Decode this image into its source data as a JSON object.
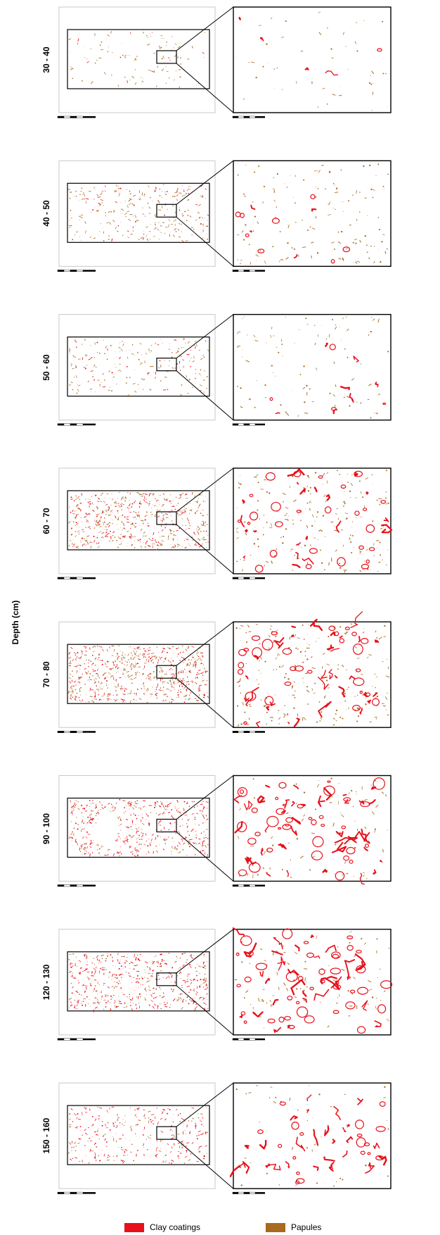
{
  "y_axis_label": "Depth (cm)",
  "colors": {
    "clay": "#e8101a",
    "papules": "#a86a1e",
    "frame": "#c8c8c8",
    "box": "#000000"
  },
  "legend": [
    {
      "label": "Clay coatings",
      "color": "#e8101a"
    },
    {
      "label": "Papules",
      "color": "#a86a1e"
    }
  ],
  "panels": [
    {
      "depth": "30 - 40",
      "clay_density": 0.02,
      "papule_density": 0.12
    },
    {
      "depth": "40 - 50",
      "clay_density": 0.1,
      "papule_density": 0.45
    },
    {
      "depth": "50 - 60",
      "clay_density": 0.08,
      "papule_density": 0.3
    },
    {
      "depth": "60 - 70",
      "clay_density": 0.45,
      "papule_density": 0.75
    },
    {
      "depth": "70 - 80",
      "clay_density": 0.6,
      "papule_density": 0.85
    },
    {
      "depth": "90 - 100",
      "clay_density": 0.75,
      "papule_density": 0.25
    },
    {
      "depth": "120 - 130",
      "clay_density": 0.7,
      "papule_density": 0.3
    },
    {
      "depth": "150 - 160",
      "clay_density": 0.45,
      "papule_density": 0.1
    }
  ]
}
